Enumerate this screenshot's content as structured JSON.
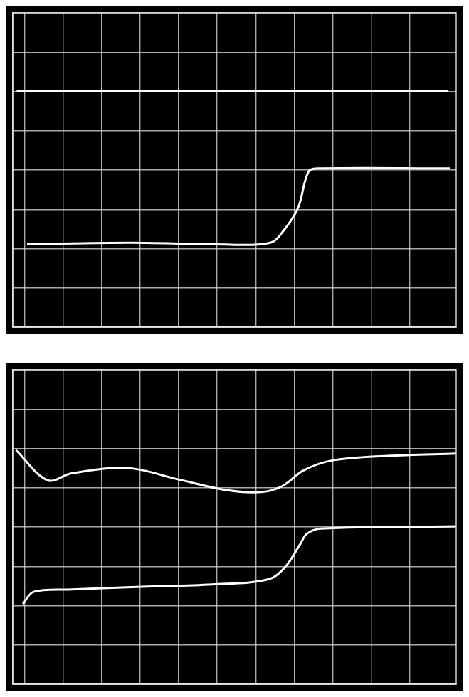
{
  "chart_data": [
    {
      "type": "line",
      "grid": true,
      "tick_labels": false,
      "xlim": [
        -0.3,
        11.2
      ],
      "xticks": [
        0,
        1,
        2,
        3,
        4,
        5,
        6,
        7,
        8,
        9,
        10
      ],
      "ylim": [
        0,
        8
      ],
      "yticks": [
        0,
        1,
        2,
        3,
        4,
        5,
        6,
        7,
        8
      ],
      "series": [
        {
          "color": "#ffffff",
          "x": [
            -0.2,
            11.0
          ],
          "values": [
            6.0,
            6.0
          ]
        },
        {
          "color": "#ffffff",
          "x": [
            0.07,
            2.77,
            4.94,
            6.38,
            6.74,
            7.1,
            7.37,
            7.64,
            11.04
          ],
          "values": [
            2.11,
            2.15,
            2.11,
            2.15,
            2.48,
            3.04,
            3.96,
            4.04,
            4.04
          ]
        }
      ]
    },
    {
      "type": "line",
      "grid": true,
      "tick_labels": false,
      "xlim": [
        -0.3,
        11.2
      ],
      "xticks": [
        0,
        1,
        2,
        3,
        4,
        5,
        6,
        7,
        8,
        9,
        10
      ],
      "ylim": [
        0,
        8
      ],
      "yticks": [
        0,
        1,
        2,
        3,
        4,
        5,
        6,
        7,
        8
      ],
      "series": [
        {
          "color": "#ffffff",
          "x": [
            -0.22,
            0.6,
            1.24,
            2.69,
            3.96,
            5.24,
            6.15,
            6.69,
            7.24,
            7.96,
            9.42,
            11.2
          ],
          "values": [
            5.96,
            5.19,
            5.37,
            5.5,
            5.22,
            4.94,
            4.89,
            5.04,
            5.44,
            5.69,
            5.81,
            5.87
          ]
        },
        {
          "color": "#ffffff",
          "x": [
            -0.04,
            0.24,
            1.24,
            3.05,
            4.87,
            6.33,
            6.78,
            7.15,
            7.33,
            7.69,
            11.2
          ],
          "values": [
            2.04,
            2.35,
            2.41,
            2.48,
            2.54,
            2.67,
            3.0,
            3.56,
            3.83,
            3.96,
            4.02
          ]
        }
      ]
    }
  ]
}
